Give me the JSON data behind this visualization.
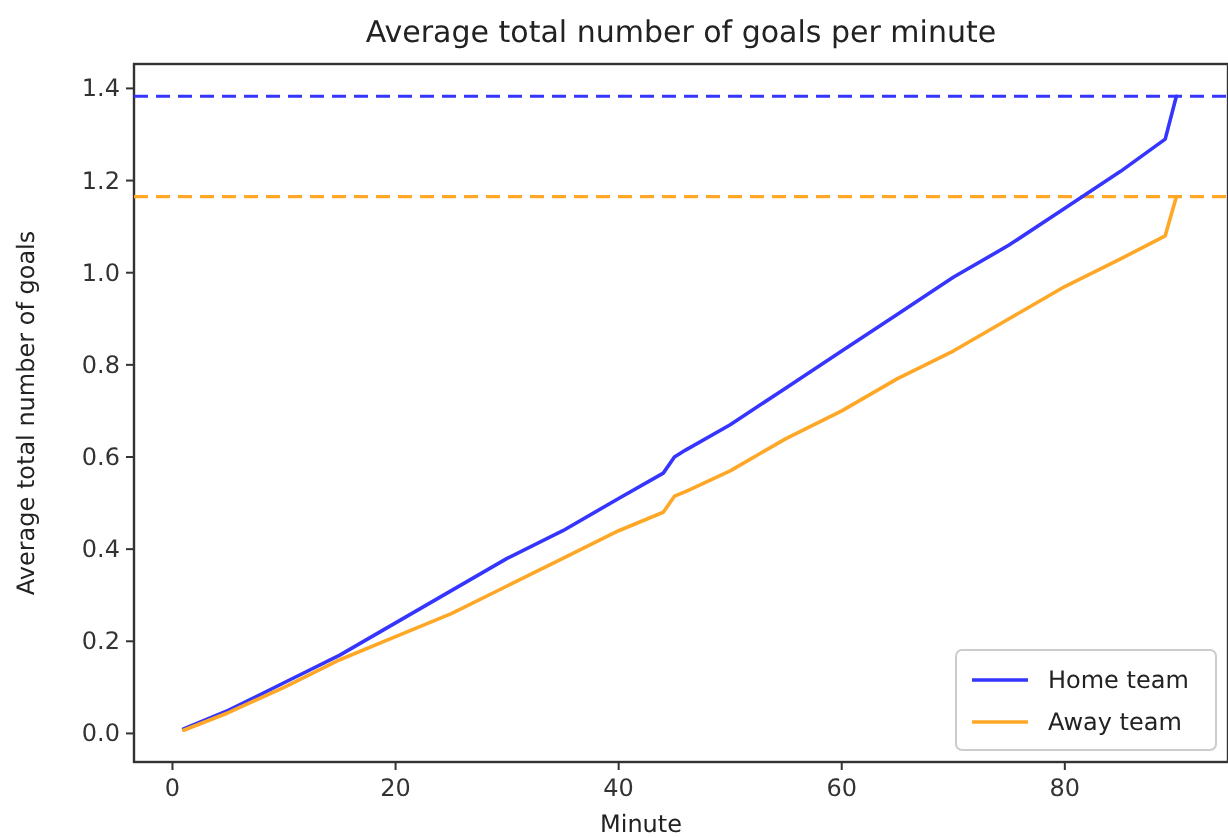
{
  "chart_data": {
    "type": "line",
    "title": "Average total number of goals per minute",
    "xlabel": "Minute",
    "ylabel": "Average total number of goals",
    "series": [
      {
        "name": "Home team",
        "color": "#3535ff",
        "x": [
          1,
          5,
          10,
          15,
          20,
          25,
          30,
          35,
          40,
          44,
          45,
          46,
          50,
          55,
          60,
          65,
          70,
          75,
          80,
          85,
          89,
          90
        ],
        "values": [
          0.01,
          0.05,
          0.11,
          0.17,
          0.24,
          0.31,
          0.38,
          0.44,
          0.51,
          0.565,
          0.6,
          0.615,
          0.67,
          0.75,
          0.83,
          0.91,
          0.99,
          1.06,
          1.14,
          1.22,
          1.29,
          1.383
        ]
      },
      {
        "name": "Away team",
        "color": "#ffa726",
        "x": [
          1,
          5,
          10,
          15,
          20,
          25,
          30,
          35,
          40,
          44,
          45,
          46,
          50,
          55,
          60,
          65,
          70,
          75,
          80,
          85,
          89,
          90
        ],
        "values": [
          0.007,
          0.045,
          0.1,
          0.16,
          0.21,
          0.26,
          0.32,
          0.38,
          0.44,
          0.48,
          0.515,
          0.525,
          0.57,
          0.64,
          0.7,
          0.77,
          0.83,
          0.9,
          0.97,
          1.03,
          1.08,
          1.165
        ]
      }
    ],
    "xlim": [
      -3.45,
      94.45
    ],
    "ylim": [
      -0.062,
      1.453
    ],
    "xticks": [
      0,
      20,
      40,
      60,
      80
    ],
    "yticks": [
      {
        "value": 0,
        "label": "0.0"
      },
      {
        "value": 0.2,
        "label": "0.2"
      },
      {
        "value": 0.4,
        "label": "0.4"
      },
      {
        "value": 0.6,
        "label": "0.6"
      },
      {
        "value": 0.8,
        "label": "0.8"
      },
      {
        "value": 1.0,
        "label": "1.0"
      },
      {
        "value": 1.2,
        "label": "1.2"
      },
      {
        "value": 1.4,
        "label": "1.4"
      }
    ],
    "ref_lines": [
      {
        "axis": "y",
        "value": 1.383,
        "color": "#3535ff",
        "line_style": "dashed"
      },
      {
        "axis": "y",
        "value": 1.165,
        "color": "#ffa726",
        "line_style": "dashed"
      }
    ],
    "legend": "bottom right",
    "grid": false,
    "line_style": "solid",
    "marker": "none"
  }
}
